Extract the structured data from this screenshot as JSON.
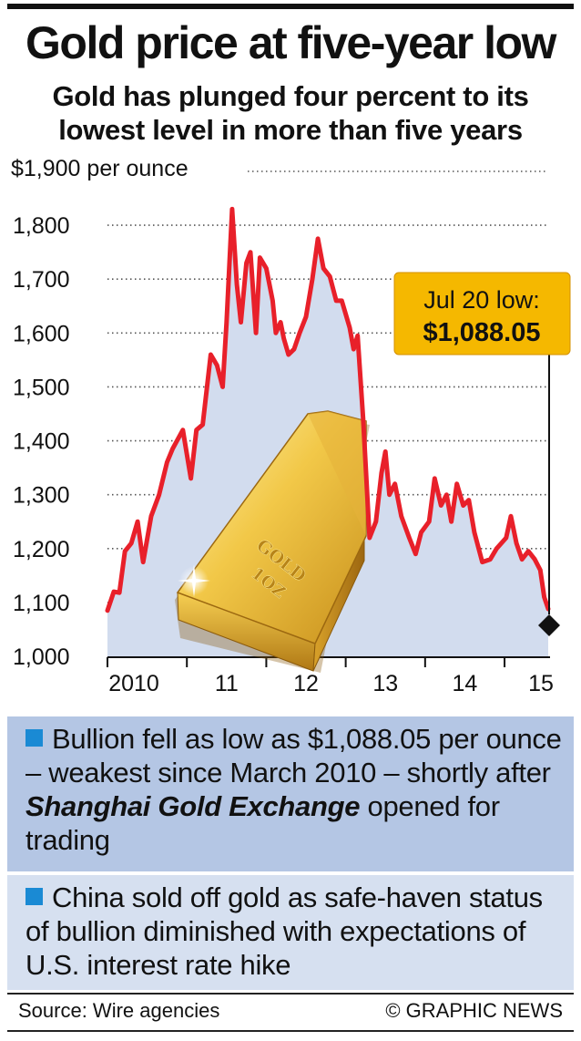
{
  "title": "Gold price at five-year low",
  "subtitle": "Gold has plunged four percent to its lowest level in more than five years",
  "callout": {
    "line1": "Jul 20 low:",
    "line2": "$1,088.05"
  },
  "bar_label": {
    "line1": "GOLD",
    "line2": "1OZ"
  },
  "bullets": [
    {
      "before": "Bullion fell as low as $1,088.05 per ounce – weakest since March 2010 – shortly after ",
      "emphasis": "Shanghai Gold Exchange",
      "after": " opened for trading"
    },
    {
      "text": "China sold off gold as safe-haven status of bullion diminished with expectations of U.S. interest rate hike"
    }
  ],
  "footer": {
    "source": "Source: Wire agencies",
    "credit": "© GRAPHIC NEWS"
  },
  "colors": {
    "line": "#e8202a",
    "area": "#d2dcee",
    "accent_bullet": "#1a8ad4",
    "callout_bg": "#f5b800"
  },
  "chart_data": {
    "type": "line",
    "ylabel": "$1,900 per ounce",
    "ylim": [
      1000,
      1900
    ],
    "yticks": [
      "1,000",
      "1,100",
      "1,200",
      "1,300",
      "1,400",
      "1,500",
      "1,600",
      "1,700",
      "1,800"
    ],
    "xticks": [
      "2010",
      "11",
      "12",
      "13",
      "14",
      "15"
    ],
    "xlim": [
      2010.0,
      2015.55
    ],
    "grid": true,
    "series": [
      {
        "values": [
          [
            2010.0,
            1085
          ],
          [
            2010.08,
            1120
          ],
          [
            2010.15,
            1118
          ],
          [
            2010.22,
            1195
          ],
          [
            2010.3,
            1210
          ],
          [
            2010.38,
            1250
          ],
          [
            2010.45,
            1175
          ],
          [
            2010.55,
            1260
          ],
          [
            2010.65,
            1300
          ],
          [
            2010.75,
            1360
          ],
          [
            2010.82,
            1385
          ],
          [
            2010.95,
            1420
          ],
          [
            2011.05,
            1330
          ],
          [
            2011.12,
            1420
          ],
          [
            2011.2,
            1430
          ],
          [
            2011.3,
            1560
          ],
          [
            2011.38,
            1540
          ],
          [
            2011.45,
            1500
          ],
          [
            2011.5,
            1620
          ],
          [
            2011.57,
            1830
          ],
          [
            2011.63,
            1690
          ],
          [
            2011.68,
            1620
          ],
          [
            2011.75,
            1730
          ],
          [
            2011.8,
            1750
          ],
          [
            2011.87,
            1600
          ],
          [
            2011.92,
            1740
          ],
          [
            2012.0,
            1720
          ],
          [
            2012.08,
            1660
          ],
          [
            2012.12,
            1600
          ],
          [
            2012.18,
            1620
          ],
          [
            2012.22,
            1590
          ],
          [
            2012.28,
            1560
          ],
          [
            2012.35,
            1570
          ],
          [
            2012.42,
            1600
          ],
          [
            2012.5,
            1630
          ],
          [
            2012.58,
            1700
          ],
          [
            2012.65,
            1775
          ],
          [
            2012.72,
            1720
          ],
          [
            2012.8,
            1705
          ],
          [
            2012.88,
            1660
          ],
          [
            2012.95,
            1660
          ],
          [
            2013.05,
            1610
          ],
          [
            2013.1,
            1570
          ],
          [
            2013.15,
            1595
          ],
          [
            2013.22,
            1440
          ],
          [
            2013.3,
            1220
          ],
          [
            2013.38,
            1250
          ],
          [
            2013.45,
            1340
          ],
          [
            2013.5,
            1380
          ],
          [
            2013.55,
            1300
          ],
          [
            2013.62,
            1320
          ],
          [
            2013.7,
            1260
          ],
          [
            2013.8,
            1220
          ],
          [
            2013.88,
            1190
          ],
          [
            2013.95,
            1230
          ],
          [
            2014.05,
            1250
          ],
          [
            2014.12,
            1330
          ],
          [
            2014.2,
            1280
          ],
          [
            2014.27,
            1300
          ],
          [
            2014.33,
            1250
          ],
          [
            2014.4,
            1320
          ],
          [
            2014.48,
            1280
          ],
          [
            2014.55,
            1290
          ],
          [
            2014.62,
            1230
          ],
          [
            2014.72,
            1175
          ],
          [
            2014.82,
            1180
          ],
          [
            2014.9,
            1200
          ],
          [
            2015.02,
            1220
          ],
          [
            2015.08,
            1260
          ],
          [
            2015.15,
            1210
          ],
          [
            2015.22,
            1180
          ],
          [
            2015.3,
            1195
          ],
          [
            2015.38,
            1180
          ],
          [
            2015.45,
            1160
          ],
          [
            2015.5,
            1110
          ],
          [
            2015.55,
            1088.05
          ]
        ]
      }
    ],
    "annotation": {
      "date": "Jul 20",
      "value": 1088.05
    }
  }
}
